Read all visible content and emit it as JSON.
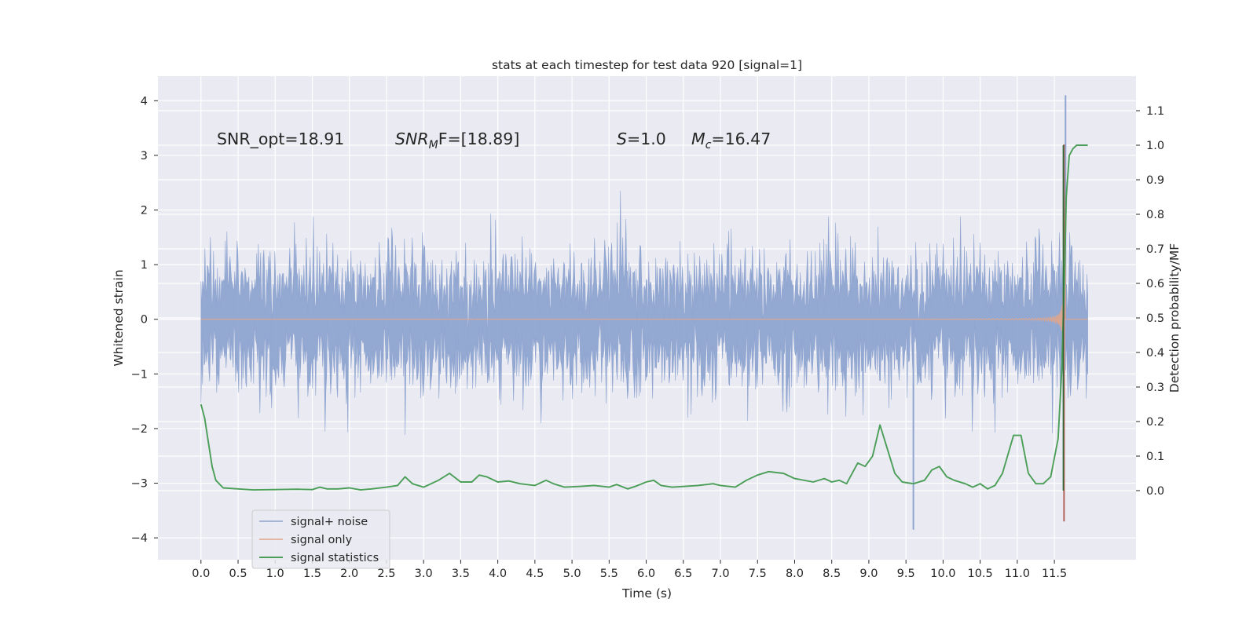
{
  "chart_data": {
    "type": "line",
    "title": "stats at each timestep for test data 920 [signal=1]",
    "xlabel": "Time (s)",
    "ylabel": "Whitened strain",
    "ylabel_right": "Detection probability/MF",
    "xlim": [
      -0.58,
      12.6
    ],
    "ylim": [
      -4.4,
      4.45
    ],
    "ylim_right": [
      -0.2,
      1.2
    ],
    "x_ticks": [
      "0.0",
      "0.5",
      "1.0",
      "1.5",
      "2.0",
      "2.5",
      "3.0",
      "3.5",
      "4.0",
      "4.5",
      "5.0",
      "5.5",
      "6.0",
      "6.5",
      "7.0",
      "7.5",
      "8.0",
      "8.5",
      "9.0",
      "9.5",
      "10.0",
      "10.5",
      "11.0",
      "11.5"
    ],
    "y_ticks": [
      "4",
      "3",
      "2",
      "1",
      "0",
      "−1",
      "−2",
      "−3",
      "−4"
    ],
    "y_ticks_right": [
      "1.1",
      "1.0",
      "0.9",
      "0.8",
      "0.7",
      "0.6",
      "0.5",
      "0.4",
      "0.3",
      "0.2",
      "0.1",
      "0.0"
    ],
    "grid": true,
    "legend_position": "lower-left",
    "series": [
      {
        "name": "signal+ noise",
        "axis": "left",
        "color": "#8fa5d0",
        "description_values": {
          "t_range": [
            0.0,
            11.95
          ],
          "typical_min": -2.0,
          "typical_max": 2.0,
          "max_value": 4.1,
          "max_at": 11.65,
          "min_value": -3.85,
          "min_at": 9.6
        }
      },
      {
        "name": "signal only",
        "axis": "left",
        "color": "#e0a58b",
        "description_values": {
          "t_range": [
            0.0,
            11.95
          ],
          "chirp_peak_amplitude": 3.2,
          "merger_time": 11.63,
          "min_value": -3.7
        }
      },
      {
        "name": "signal statistics",
        "axis": "right",
        "color": "#4a9e57",
        "x": [
          0.0,
          0.05,
          0.1,
          0.15,
          0.2,
          0.3,
          0.5,
          0.7,
          1.0,
          1.3,
          1.5,
          1.6,
          1.7,
          1.85,
          2.0,
          2.15,
          2.3,
          2.5,
          2.65,
          2.75,
          2.85,
          3.0,
          3.2,
          3.35,
          3.5,
          3.65,
          3.75,
          3.85,
          4.0,
          4.15,
          4.3,
          4.5,
          4.65,
          4.75,
          4.9,
          5.1,
          5.3,
          5.5,
          5.6,
          5.75,
          5.85,
          6.0,
          6.1,
          6.2,
          6.35,
          6.5,
          6.7,
          6.9,
          7.0,
          7.2,
          7.35,
          7.5,
          7.65,
          7.85,
          8.0,
          8.25,
          8.4,
          8.5,
          8.6,
          8.7,
          8.75,
          8.85,
          8.95,
          9.05,
          9.15,
          9.25,
          9.35,
          9.45,
          9.6,
          9.75,
          9.85,
          9.95,
          10.05,
          10.15,
          10.3,
          10.4,
          10.5,
          10.6,
          10.7,
          10.8,
          10.95,
          11.05,
          11.15,
          11.25,
          11.35,
          11.45,
          11.55,
          11.6,
          11.64,
          11.66,
          11.7,
          11.75,
          11.8,
          11.9,
          11.95
        ],
        "values": [
          0.25,
          0.21,
          0.14,
          0.07,
          0.03,
          0.008,
          0.005,
          0.002,
          0.003,
          0.004,
          0.003,
          0.01,
          0.005,
          0.005,
          0.008,
          0.002,
          0.005,
          0.01,
          0.015,
          0.04,
          0.02,
          0.01,
          0.03,
          0.05,
          0.025,
          0.025,
          0.045,
          0.04,
          0.025,
          0.028,
          0.02,
          0.015,
          0.03,
          0.02,
          0.01,
          0.012,
          0.015,
          0.01,
          0.018,
          0.005,
          0.012,
          0.025,
          0.03,
          0.015,
          0.01,
          0.012,
          0.015,
          0.02,
          0.015,
          0.01,
          0.03,
          0.045,
          0.055,
          0.05,
          0.035,
          0.025,
          0.035,
          0.025,
          0.03,
          0.02,
          0.04,
          0.08,
          0.07,
          0.1,
          0.19,
          0.12,
          0.05,
          0.025,
          0.02,
          0.03,
          0.06,
          0.07,
          0.04,
          0.03,
          0.02,
          0.01,
          0.02,
          0.005,
          0.015,
          0.05,
          0.16,
          0.16,
          0.05,
          0.02,
          0.02,
          0.04,
          0.15,
          0.35,
          0.65,
          0.85,
          0.97,
          0.99,
          1.0,
          1.0,
          1.0
        ]
      }
    ],
    "annotations": [
      {
        "prefix": "SNR_opt=18.91",
        "italic": "",
        "sub": "",
        "suffix": ""
      },
      {
        "prefix": "",
        "italic": "SNR",
        "sub": "M",
        "suffix": "F=[18.89]"
      },
      {
        "prefix": "",
        "italic": "S",
        "sub": "",
        "suffix": "=1.0"
      },
      {
        "prefix": "",
        "italic": "M",
        "sub": "c",
        "suffix": "=16.47"
      }
    ]
  }
}
